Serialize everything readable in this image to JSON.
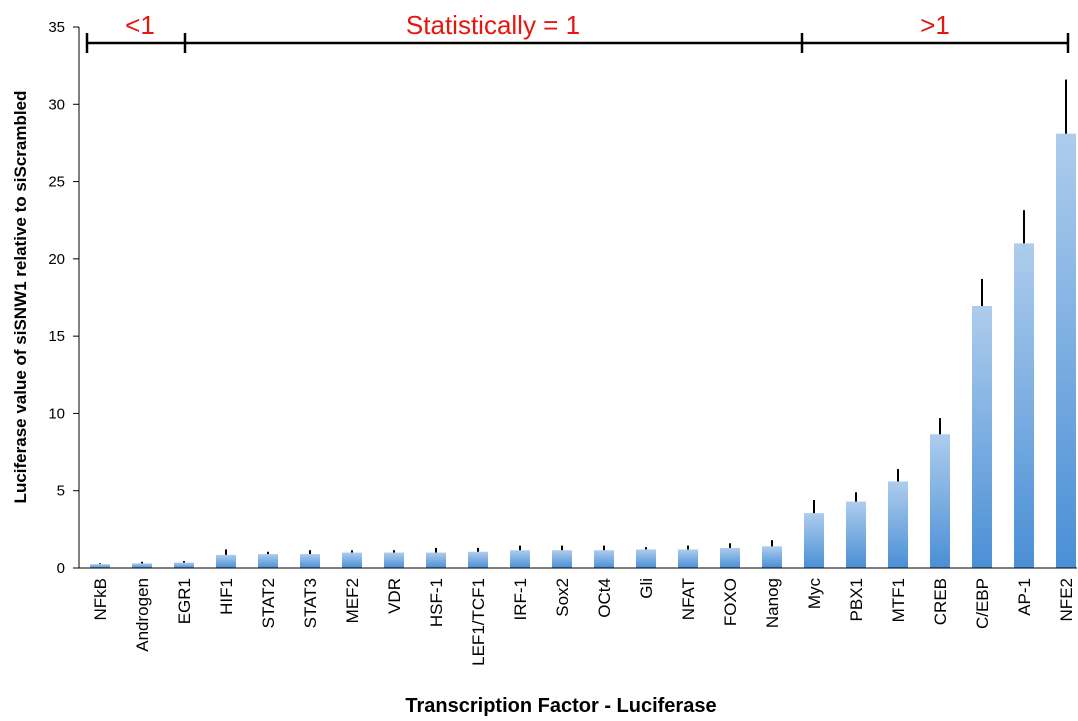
{
  "chart_data": {
    "type": "bar",
    "y_label": "Luciferase value of siSNW1 relative to siScrambled",
    "x_label": "Transcription Factor - Luciferase",
    "categories": [
      "NFkB",
      "Androgen",
      "EGR1",
      "HIF1",
      "STAT2",
      "STAT3",
      "MEF2",
      "VDR",
      "HSF-1",
      "LEF1/TCF1",
      "IRF-1",
      "Sox2",
      "OCt4",
      "Gli",
      "NFAT",
      "FOXO",
      "Nanog",
      "Myc",
      "PBX1",
      "MTF1",
      "CREB",
      "C/EBP",
      "AP-1",
      "NFE2"
    ],
    "values": [
      0.25,
      0.3,
      0.35,
      0.85,
      0.9,
      0.9,
      1.0,
      1.0,
      1.0,
      1.05,
      1.15,
      1.15,
      1.15,
      1.2,
      1.2,
      1.3,
      1.4,
      3.55,
      4.3,
      5.6,
      8.65,
      16.95,
      21.0,
      28.1
    ],
    "errors": [
      0.05,
      0.1,
      0.1,
      0.35,
      0.15,
      0.25,
      0.15,
      0.15,
      0.3,
      0.25,
      0.3,
      0.3,
      0.3,
      0.15,
      0.25,
      0.3,
      0.4,
      0.85,
      0.6,
      0.8,
      1.05,
      1.75,
      2.15,
      3.5
    ],
    "color": "#4a8fd6",
    "ylim": [
      0,
      35
    ],
    "yticks": [
      0,
      5,
      10,
      15,
      20,
      25,
      30,
      35
    ],
    "annotations": [
      "<1",
      "Statistically = 1",
      ">1"
    ]
  }
}
